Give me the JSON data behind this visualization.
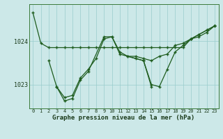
{
  "title": "Graphe pression niveau de la mer (hPa)",
  "bg_color": "#cce8e8",
  "plot_bg_color": "#cce8e8",
  "line_color": "#1e5c1e",
  "grid_color": "#99cccc",
  "text_color": "#1a3a1a",
  "spine_color": "#3a7a3a",
  "ylim": [
    1022.45,
    1024.85
  ],
  "yticks": [
    1023,
    1024
  ],
  "xticks": [
    0,
    1,
    2,
    3,
    4,
    5,
    6,
    7,
    8,
    9,
    10,
    11,
    12,
    13,
    14,
    15,
    16,
    17,
    18,
    19,
    20,
    21,
    22,
    23
  ],
  "series1_x": [
    0,
    1,
    2,
    3,
    4,
    5,
    6,
    7,
    8,
    9,
    10,
    11,
    12,
    13,
    14,
    15,
    16,
    17,
    18,
    19,
    20,
    21,
    22,
    23
  ],
  "series1_y": [
    1024.65,
    1023.95,
    1023.85,
    1023.85,
    1023.85,
    1023.85,
    1023.85,
    1023.85,
    1023.85,
    1023.85,
    1023.85,
    1023.85,
    1023.85,
    1023.85,
    1023.85,
    1023.85,
    1023.85,
    1023.85,
    1023.85,
    1023.85,
    1024.05,
    1024.1,
    1024.2,
    1024.35
  ],
  "series2_x": [
    2,
    3,
    4,
    5,
    6,
    7,
    8,
    9,
    10,
    11,
    12,
    13,
    14,
    15,
    16,
    17,
    18,
    19,
    20,
    21,
    22,
    23
  ],
  "series2_y": [
    1023.55,
    1022.95,
    1022.7,
    1022.75,
    1023.15,
    1023.35,
    1023.6,
    1024.05,
    1024.1,
    1023.75,
    1023.65,
    1023.6,
    1023.55,
    1023.0,
    1022.95,
    1023.35,
    1023.75,
    1023.9,
    1024.05,
    1024.15,
    1024.25,
    1024.35
  ],
  "series3_x": [
    3,
    4,
    5,
    6,
    7,
    9,
    10,
    11,
    14,
    15
  ],
  "series3_y": [
    1022.95,
    1022.62,
    1022.68,
    1023.1,
    1023.3,
    1024.1,
    1024.1,
    1023.7,
    1023.55,
    1022.95
  ],
  "series4_x": [
    12,
    13,
    14,
    15,
    16,
    17,
    18,
    19,
    20,
    21,
    22,
    23
  ],
  "series4_y": [
    1023.65,
    1023.65,
    1023.6,
    1023.55,
    1023.65,
    1023.7,
    1023.9,
    1023.95,
    1024.05,
    1024.15,
    1024.25,
    1024.35
  ]
}
